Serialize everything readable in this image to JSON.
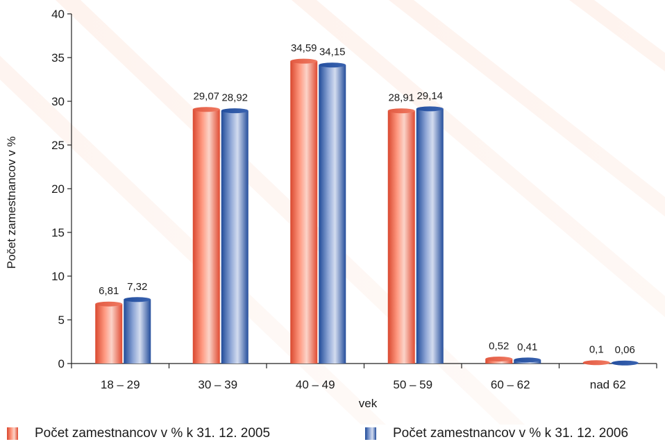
{
  "chart_data": {
    "type": "bar",
    "categories": [
      "18 – 29",
      "30 – 39",
      "40 – 49",
      "50 – 59",
      "60 – 62",
      "nad 62"
    ],
    "series": [
      {
        "name": "Počet zamestnancov v % k 31. 12. 2005",
        "values": [
          6.81,
          29.07,
          34.59,
          28.91,
          0.52,
          0.1
        ],
        "labels": [
          "6,81",
          "29,07",
          "34,59",
          "28,91",
          "0,52",
          "0,1"
        ],
        "color": "#e8533a"
      },
      {
        "name": "Počet zamestnancov v % k 31. 12. 2006",
        "values": [
          7.32,
          28.92,
          34.15,
          29.14,
          0.41,
          0.06
        ],
        "labels": [
          "7,32",
          "28,92",
          "34,15",
          "29,14",
          "0,41",
          "0,06"
        ],
        "color": "#2b55a3"
      }
    ],
    "title": "",
    "xlabel": "vek",
    "ylabel": "Počet zamestnancov v %",
    "ylim": [
      0,
      40
    ],
    "yticks": [
      0,
      5,
      10,
      15,
      20,
      25,
      30,
      35,
      40
    ],
    "grid": false,
    "legend_position": "bottom"
  }
}
